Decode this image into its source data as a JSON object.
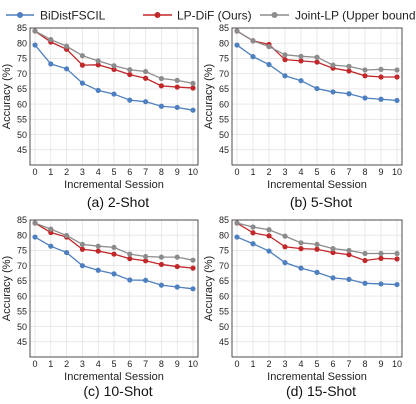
{
  "legend": {
    "items": [
      {
        "label": "BiDistFSCIL",
        "color": "#4e7fbe"
      },
      {
        "label": "LP-DiF (Ours)",
        "color": "#c0282a"
      },
      {
        "label": "Joint-LP (Upper bound)",
        "color": "#8c8c8c"
      }
    ]
  },
  "colors": {
    "bidist": "#4e7fbe",
    "lpdif": "#c0282a",
    "joint": "#8c8c8c",
    "grid": "#dcdcdc"
  },
  "chart_data": [
    {
      "type": "line",
      "caption": "(a) 2-Shot",
      "xlabel": "Incremental Session",
      "ylabel": "Accuracy (%)",
      "x": [
        0,
        1,
        2,
        3,
        4,
        5,
        6,
        7,
        8,
        9,
        10
      ],
      "xlim": [
        0,
        10
      ],
      "ylim": [
        40,
        85
      ],
      "yticks": [
        45,
        50,
        55,
        60,
        65,
        70,
        75,
        80,
        85
      ],
      "grid": true,
      "series": [
        {
          "name": "BiDistFSCIL",
          "values": [
            79.4,
            73.2,
            71.6,
            66.9,
            64.5,
            63.3,
            61.3,
            60.8,
            59.3,
            58.9,
            58.0
          ]
        },
        {
          "name": "LP-DiF (Ours)",
          "values": [
            84.0,
            80.4,
            78.0,
            72.8,
            72.9,
            71.4,
            69.7,
            68.5,
            66.0,
            65.6,
            65.3
          ]
        },
        {
          "name": "Joint-LP (Upper bound)",
          "values": [
            84.0,
            81.2,
            79.0,
            75.9,
            74.2,
            72.6,
            71.3,
            70.7,
            68.4,
            67.8,
            66.8
          ]
        }
      ]
    },
    {
      "type": "line",
      "caption": "(b) 5-Shot",
      "xlabel": "Incremental Session",
      "ylabel": "Accuracy (%)",
      "x": [
        0,
        1,
        2,
        3,
        4,
        5,
        6,
        7,
        8,
        9,
        10
      ],
      "xlim": [
        0,
        10
      ],
      "ylim": [
        40,
        85
      ],
      "yticks": [
        45,
        50,
        55,
        60,
        65,
        70,
        75,
        80,
        85
      ],
      "grid": true,
      "series": [
        {
          "name": "BiDistFSCIL",
          "values": [
            79.4,
            75.6,
            73.0,
            69.3,
            67.7,
            65.1,
            64.0,
            63.4,
            62.0,
            61.6,
            61.2
          ]
        },
        {
          "name": "LP-DiF (Ours)",
          "values": [
            84.0,
            80.8,
            79.6,
            74.6,
            74.2,
            73.8,
            71.8,
            70.9,
            69.3,
            68.9,
            68.9
          ]
        },
        {
          "name": "Joint-LP (Upper bound)",
          "values": [
            84.0,
            80.8,
            78.9,
            76.2,
            75.7,
            75.4,
            72.8,
            72.4,
            71.2,
            71.4,
            71.2
          ]
        }
      ]
    },
    {
      "type": "line",
      "caption": "(c) 10-Shot",
      "xlabel": "Incremental Session",
      "ylabel": "Accuracy (%)",
      "x": [
        0,
        1,
        2,
        3,
        4,
        5,
        6,
        7,
        8,
        9,
        10
      ],
      "xlim": [
        0,
        10
      ],
      "ylim": [
        40,
        85
      ],
      "yticks": [
        45,
        50,
        55,
        60,
        65,
        70,
        75,
        80,
        85
      ],
      "grid": true,
      "series": [
        {
          "name": "BiDistFSCIL",
          "values": [
            79.4,
            76.4,
            74.3,
            70.0,
            68.5,
            67.3,
            65.3,
            65.2,
            63.6,
            63.0,
            62.4
          ]
        },
        {
          "name": "LP-DiF (Ours)",
          "values": [
            84.0,
            80.9,
            79.4,
            75.4,
            74.8,
            73.8,
            72.3,
            71.6,
            70.4,
            69.7,
            69.2
          ]
        },
        {
          "name": "Joint-LP (Upper bound)",
          "values": [
            84.0,
            82.0,
            79.9,
            77.0,
            76.4,
            76.0,
            73.8,
            73.0,
            72.8,
            72.8,
            71.8
          ]
        }
      ]
    },
    {
      "type": "line",
      "caption": "(d) 15-Shot",
      "xlabel": "Incremental Session",
      "ylabel": "Accuracy (%)",
      "x": [
        0,
        1,
        2,
        3,
        4,
        5,
        6,
        7,
        8,
        9,
        10
      ],
      "xlim": [
        0,
        10
      ],
      "ylim": [
        40,
        85
      ],
      "yticks": [
        45,
        50,
        55,
        60,
        65,
        70,
        75,
        80,
        85
      ],
      "grid": true,
      "series": [
        {
          "name": "BiDistFSCIL",
          "values": [
            79.4,
            77.2,
            74.8,
            71.0,
            69.2,
            67.8,
            66.0,
            65.5,
            64.2,
            64.0,
            63.8
          ]
        },
        {
          "name": "LP-DiF (Ours)",
          "values": [
            84.0,
            80.8,
            79.8,
            76.2,
            75.6,
            75.4,
            74.3,
            73.6,
            71.7,
            72.4,
            72.2
          ]
        },
        {
          "name": "Joint-LP (Upper bound)",
          "values": [
            84.0,
            82.7,
            81.8,
            79.7,
            77.5,
            77.0,
            75.6,
            75.0,
            74.0,
            74.0,
            74.0
          ]
        }
      ]
    }
  ]
}
